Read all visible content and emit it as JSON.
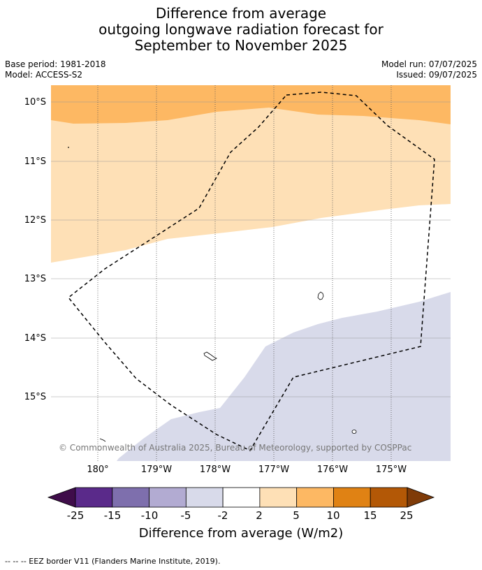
{
  "title": {
    "line1": "Difference from average",
    "line2": "outgoing longwave radiation forecast for",
    "line3": "September to November 2025"
  },
  "meta_left": {
    "base_period": "Base period: 1981-2018",
    "model": "Model: ACCESS-S2"
  },
  "meta_right": {
    "model_run": "Model run: 07/07/2025",
    "issued": "Issued: 09/07/2025"
  },
  "map": {
    "latitude_labels": [
      "10°S",
      "11°S",
      "12°S",
      "13°S",
      "14°S",
      "15°S"
    ],
    "longitude_labels": [
      "180°",
      "179°W",
      "178°W",
      "177°W",
      "176°W",
      "175°W"
    ],
    "copyright": "© Commonwealth of Australia 2025, Bureau of Meteorology, supported by COSPPac",
    "colors": {
      "anomaly_5_to_10": "#fdb863",
      "anomaly_2_to_5": "#fee0b6",
      "anomaly_neutral": "#ffffff",
      "anomaly_minus5_to_minus2": "#d8daea",
      "eez_border": "#000000",
      "gridline": "#999999"
    }
  },
  "colorbar": {
    "tick_labels": [
      "-25",
      "-15",
      "-10",
      "-5",
      "-2",
      "2",
      "5",
      "10",
      "15",
      "25"
    ],
    "colors": [
      "#3f0d4a",
      "#5a2a8a",
      "#7e6fad",
      "#b2abd2",
      "#d8daea",
      "#ffffff",
      "#fee0b6",
      "#fdb863",
      "#e08214",
      "#b35806",
      "#7f3b08"
    ],
    "title": "Difference from average (W/m2)"
  },
  "footnote": "--  --  -- EEZ border V11 (Flanders Marine Institute, 2019)."
}
